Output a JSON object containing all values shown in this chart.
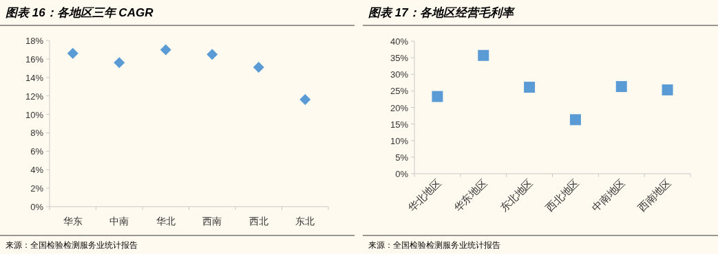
{
  "chart_data": [
    {
      "type": "scatter",
      "title": "图表 16：各地区三年 CAGR",
      "categories": [
        "华东",
        "中南",
        "华北",
        "西南",
        "西北",
        "东北"
      ],
      "values": [
        16.6,
        15.6,
        17.0,
        16.5,
        15.1,
        11.6
      ],
      "color": "#5b9bd5",
      "marker": "diamond",
      "ylim": [
        0,
        18
      ],
      "yticks": [
        {
          "value": 0,
          "label": "0%"
        },
        {
          "value": 2,
          "label": "2%"
        },
        {
          "value": 4,
          "label": "4%"
        },
        {
          "value": 6,
          "label": "6%"
        },
        {
          "value": 8,
          "label": "8%"
        },
        {
          "value": 10,
          "label": "10%"
        },
        {
          "value": 12,
          "label": "12%"
        },
        {
          "value": 14,
          "label": "14%"
        },
        {
          "value": 16,
          "label": "16%"
        },
        {
          "value": 18,
          "label": "18%"
        }
      ],
      "annotations": [
        "来源：全国检验检测服务业统计报告"
      ]
    },
    {
      "type": "scatter",
      "title": "图表 17：各地区经营毛利率",
      "categories": [
        "华北地区",
        "华东地区",
        "东北地区",
        "西北地区",
        "中南地区",
        "西南地区"
      ],
      "values": [
        23.3,
        35.7,
        26.1,
        16.3,
        26.3,
        25.3
      ],
      "color": "#5b9bd5",
      "marker": "square",
      "ylim": [
        0,
        40
      ],
      "yticks": [
        {
          "value": 0,
          "label": "0%"
        },
        {
          "value": 5,
          "label": "5%"
        },
        {
          "value": 10,
          "label": "10%"
        },
        {
          "value": 15,
          "label": "15%"
        },
        {
          "value": 20,
          "label": "20%"
        },
        {
          "value": 25,
          "label": "25%"
        },
        {
          "value": 30,
          "label": "30%"
        },
        {
          "value": 35,
          "label": "35%"
        },
        {
          "value": 40,
          "label": "40%"
        }
      ],
      "annotations": [
        "来源：全国检验检测服务业统计报告"
      ]
    }
  ]
}
